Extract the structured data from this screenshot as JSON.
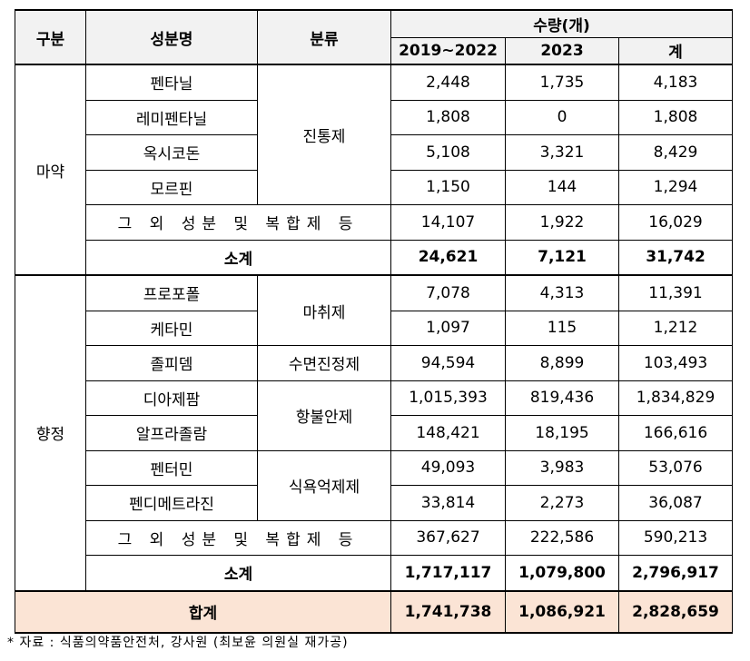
{
  "table": {
    "headers": {
      "group": "구분",
      "ingredient": "성분명",
      "class": "분류",
      "quantity": "수량(개)",
      "period1": "2019~2022",
      "period2": "2023",
      "total": "계"
    },
    "groups": [
      {
        "label": "마약",
        "classes": [
          {
            "name": "진통제",
            "items": [
              [
                "펜타닐",
                "2,448",
                "1,735",
                "4,183"
              ],
              [
                "레미펜타닐",
                "1,808",
                "0",
                "1,808"
              ],
              [
                "옥시코돈",
                "5,108",
                "3,321",
                "8,429"
              ],
              [
                "모르핀",
                "1,150",
                "144",
                "1,294"
              ]
            ]
          }
        ],
        "other": [
          "그 외 성분 및 복합제 등",
          "14,107",
          "1,922",
          "16,029"
        ],
        "subtotal": [
          "소계",
          "24,621",
          "7,121",
          "31,742"
        ]
      },
      {
        "label": "향정",
        "classes": [
          {
            "name": "마취제",
            "items": [
              [
                "프로포폴",
                "7,078",
                "4,313",
                "11,391"
              ],
              [
                "케타민",
                "1,097",
                "115",
                "1,212"
              ]
            ]
          },
          {
            "name": "수면진정제",
            "items": [
              [
                "졸피뎀",
                "94,594",
                "8,899",
                "103,493"
              ]
            ]
          },
          {
            "name": "항불안제",
            "items": [
              [
                "디아제팜",
                "1,015,393",
                "819,436",
                "1,834,829"
              ],
              [
                "알프라졸람",
                "148,421",
                "18,195",
                "166,616"
              ]
            ]
          },
          {
            "name": "식욕억제제",
            "items": [
              [
                "펜터민",
                "49,093",
                "3,983",
                "53,076"
              ],
              [
                "펜디메트라진",
                "33,814",
                "2,273",
                "36,087"
              ]
            ]
          }
        ],
        "other": [
          "그 외 성분 및 복합제 등",
          "367,627",
          "222,586",
          "590,213"
        ],
        "subtotal": [
          "소계",
          "1,717,117",
          "1,079,800",
          "2,796,917"
        ]
      }
    ],
    "total": [
      "합계",
      "1,741,738",
      "1,086,921",
      "2,828,659"
    ],
    "footnote": "* 자료 : 식품의약품안전처, 강사원 (최보윤 의원실 재가공)"
  }
}
